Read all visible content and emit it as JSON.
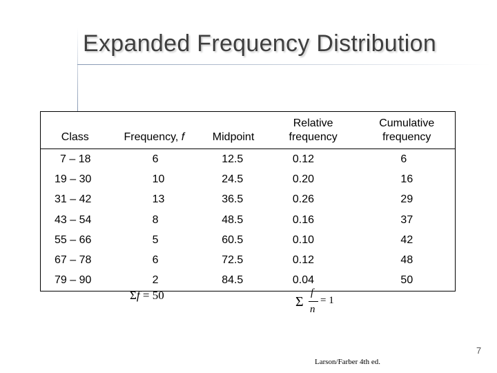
{
  "title": "Expanded Frequency Distribution",
  "table": {
    "headers": {
      "class": "Class",
      "frequency_prefix": "Frequency, ",
      "frequency_var": "f",
      "midpoint": "Midpoint",
      "relative_1": "Relative",
      "relative_2": "frequency",
      "cumulative_1": "Cumulative",
      "cumulative_2": "frequency"
    },
    "rows": [
      {
        "class": "7 – 18",
        "frequency": "6",
        "midpoint": "12.5",
        "relative": "0.12",
        "cumulative": "6"
      },
      {
        "class": "19 – 30",
        "frequency": "10",
        "midpoint": "24.5",
        "relative": "0.20",
        "cumulative": "16"
      },
      {
        "class": "31 – 42",
        "frequency": "13",
        "midpoint": "36.5",
        "relative": "0.26",
        "cumulative": "29"
      },
      {
        "class": "43 – 54",
        "frequency": "8",
        "midpoint": "48.5",
        "relative": "0.16",
        "cumulative": "37"
      },
      {
        "class": "55 – 66",
        "frequency": "5",
        "midpoint": "60.5",
        "relative": "0.10",
        "cumulative": "42"
      },
      {
        "class": "67 – 78",
        "frequency": "6",
        "midpoint": "72.5",
        "relative": "0.12",
        "cumulative": "48"
      },
      {
        "class": "79 – 90",
        "frequency": "2",
        "midpoint": "84.5",
        "relative": "0.04",
        "cumulative": "50"
      }
    ]
  },
  "sum_frequency": {
    "sigma": "Σ",
    "var": "f",
    "rest": " = 50"
  },
  "sum_relative": {
    "sigma": "Σ",
    "numerator": "f",
    "denominator": "n",
    "rhs": "= 1"
  },
  "page_number": "7",
  "credit": "Larson/Farber 4th ed."
}
